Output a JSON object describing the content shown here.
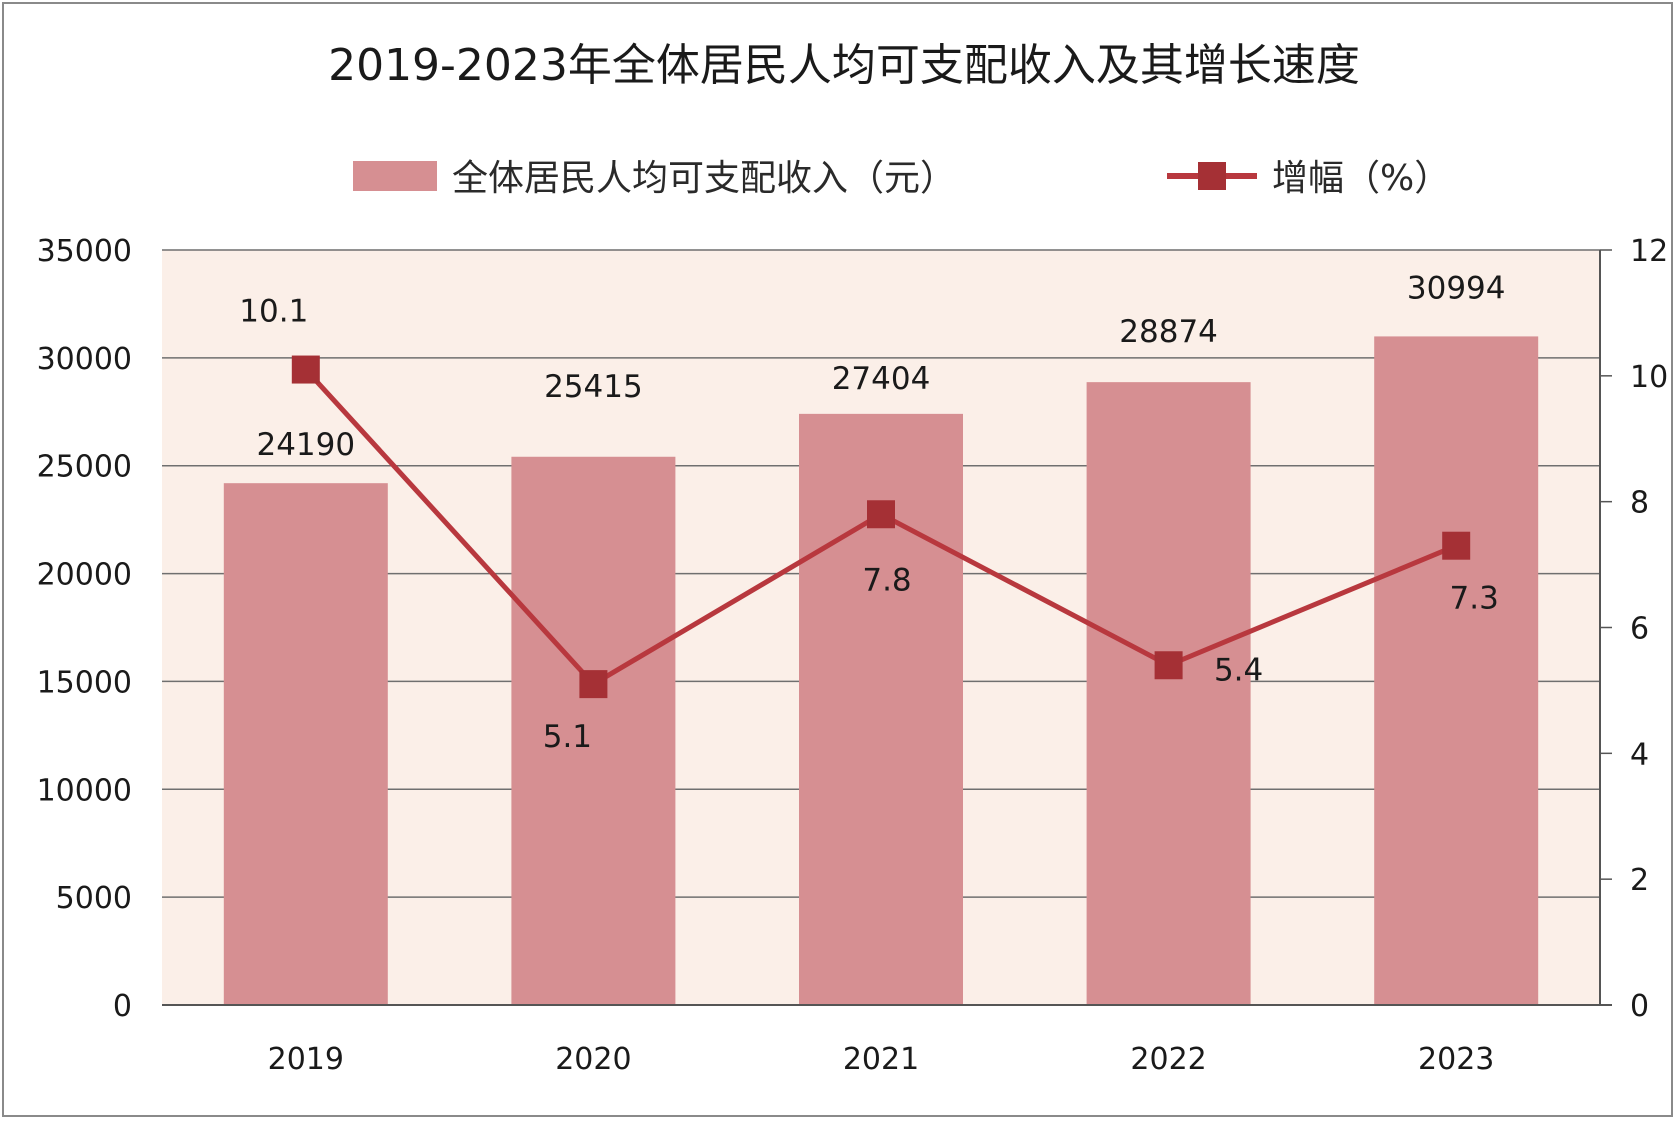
{
  "chart_data": {
    "type": "bar",
    "title": "2019-2023年全体居民人均可支配收入及其增长速度",
    "categories": [
      "2019",
      "2020",
      "2021",
      "2022",
      "2023"
    ],
    "series": [
      {
        "name": "全体居民人均可支配收入（元）",
        "type": "bar",
        "axis": "left",
        "values": [
          24190,
          25415,
          27404,
          28874,
          30994
        ],
        "labels": [
          "24190",
          "25415",
          "27404",
          "28874",
          "30994"
        ]
      },
      {
        "name": "增幅（%）",
        "type": "line",
        "axis": "right",
        "values": [
          10.1,
          5.1,
          7.8,
          5.4,
          7.3
        ],
        "labels": [
          "10.1",
          "5.1",
          "7.8",
          "5.4",
          "7.3"
        ]
      }
    ],
    "y_left": {
      "ylim": [
        0,
        35000
      ],
      "ticks": [
        0,
        5000,
        10000,
        15000,
        20000,
        25000,
        30000,
        35000
      ],
      "tick_labels": [
        "0",
        "5000",
        "10000",
        "15000",
        "20000",
        "25000",
        "30000",
        "35000"
      ]
    },
    "y_right": {
      "ylim": [
        0,
        12
      ],
      "ticks": [
        0,
        2,
        4,
        6,
        8,
        10,
        12
      ],
      "tick_labels": [
        "0",
        "2",
        "4",
        "6",
        "8",
        "10",
        "12"
      ]
    },
    "grid": true,
    "legend_position": "top",
    "colors": {
      "bar": "#d68f92",
      "line": "#b8383e",
      "marker": "#a53035",
      "plot_bg": "#fbefe8",
      "grid": "#6f6f6f"
    }
  }
}
